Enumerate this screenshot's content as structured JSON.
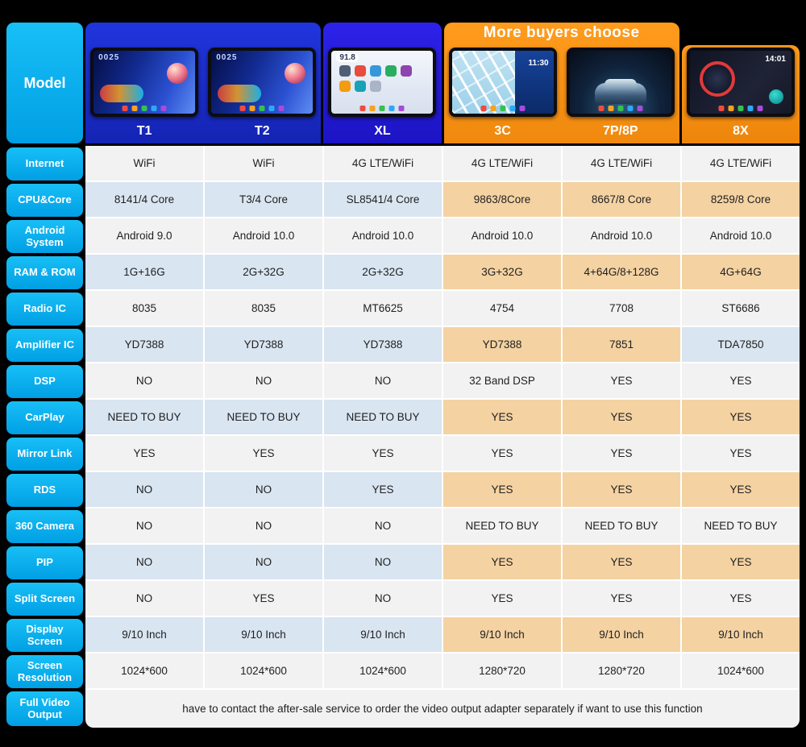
{
  "colors": {
    "accent_cyan": "#00aeef",
    "header_blue": "#1c2ed6",
    "header_blue_xl": "#2a20e2",
    "accent_orange": "#f7941e",
    "row_light": "#f2f2f2",
    "row_blue": "#d9e5f1",
    "highlight_peach": "#f4d2a2"
  },
  "header": {
    "model_label": "Model",
    "banner": "More buyers choose",
    "columns": [
      {
        "label": "T1",
        "screen_text": "0025"
      },
      {
        "label": "T2",
        "screen_text": "0025"
      },
      {
        "label": "XL",
        "screen_text": "91.8"
      },
      {
        "label": "3C",
        "screen_text": "11:30"
      },
      {
        "label": "7P/8P",
        "screen_text": ""
      },
      {
        "label": "8X",
        "screen_text": "14:01"
      }
    ]
  },
  "table": {
    "rows": [
      {
        "label": "Internet",
        "shade": "light",
        "highlight": [],
        "values": [
          "WiFi",
          "WiFi",
          "4G LTE/WiFi",
          "4G LTE/WiFi",
          "4G LTE/WiFi",
          "4G LTE/WiFi"
        ]
      },
      {
        "label": "CPU&Core",
        "shade": "blue",
        "highlight": [
          3,
          4,
          5
        ],
        "values": [
          "8141/4 Core",
          "T3/4 Core",
          "SL8541/4 Core",
          "9863/8Core",
          "8667/8 Core",
          "8259/8 Core"
        ]
      },
      {
        "label": "Android System",
        "shade": "light",
        "highlight": [],
        "values": [
          "Android 9.0",
          "Android 10.0",
          "Android 10.0",
          "Android 10.0",
          "Android 10.0",
          "Android 10.0"
        ]
      },
      {
        "label": "RAM & ROM",
        "shade": "blue",
        "highlight": [
          3,
          4,
          5
        ],
        "values": [
          "1G+16G",
          "2G+32G",
          "2G+32G",
          "3G+32G",
          "4+64G/8+128G",
          "4G+64G"
        ]
      },
      {
        "label": "Radio IC",
        "shade": "light",
        "highlight": [],
        "values": [
          "8035",
          "8035",
          "MT6625",
          "4754",
          "7708",
          "ST6686"
        ]
      },
      {
        "label": "Amplifier IC",
        "shade": "blue",
        "highlight": [
          3,
          4
        ],
        "values": [
          "YD7388",
          "YD7388",
          "YD7388",
          "YD7388",
          "7851",
          "TDA7850"
        ]
      },
      {
        "label": "DSP",
        "shade": "light",
        "highlight": [],
        "values": [
          "NO",
          "NO",
          "NO",
          "32 Band DSP",
          "YES",
          "YES"
        ]
      },
      {
        "label": "CarPlay",
        "shade": "blue",
        "highlight": [
          3,
          4,
          5
        ],
        "values": [
          "NEED TO BUY",
          "NEED TO BUY",
          "NEED TO BUY",
          "YES",
          "YES",
          "YES"
        ]
      },
      {
        "label": "Mirror Link",
        "shade": "light",
        "highlight": [],
        "values": [
          "YES",
          "YES",
          "YES",
          "YES",
          "YES",
          "YES"
        ]
      },
      {
        "label": "RDS",
        "shade": "blue",
        "highlight": [
          3,
          4,
          5
        ],
        "values": [
          "NO",
          "NO",
          "YES",
          "YES",
          "YES",
          "YES"
        ]
      },
      {
        "label": "360 Camera",
        "shade": "light",
        "highlight": [],
        "values": [
          "NO",
          "NO",
          "NO",
          "NEED TO BUY",
          "NEED TO BUY",
          "NEED TO BUY"
        ]
      },
      {
        "label": "PIP",
        "shade": "blue",
        "highlight": [
          3,
          4,
          5
        ],
        "values": [
          "NO",
          "NO",
          "NO",
          "YES",
          "YES",
          "YES"
        ]
      },
      {
        "label": "Split Screen",
        "shade": "light",
        "highlight": [],
        "values": [
          "NO",
          "YES",
          "NO",
          "YES",
          "YES",
          "YES"
        ]
      },
      {
        "label": "Display Screen",
        "shade": "blue",
        "highlight": [
          3,
          4,
          5
        ],
        "values": [
          "9/10 Inch",
          "9/10 Inch",
          "9/10 Inch",
          "9/10 Inch",
          "9/10 Inch",
          "9/10 Inch"
        ]
      },
      {
        "label": "Screen Resolution",
        "shade": "light",
        "highlight": [],
        "values": [
          "1024*600",
          "1024*600",
          "1024*600",
          "1280*720",
          "1280*720",
          "1024*600"
        ]
      }
    ]
  },
  "footer": {
    "label": "Full Video Output",
    "note": "have to contact the after-sale service to order the video output adapter separately if want to use this function"
  }
}
